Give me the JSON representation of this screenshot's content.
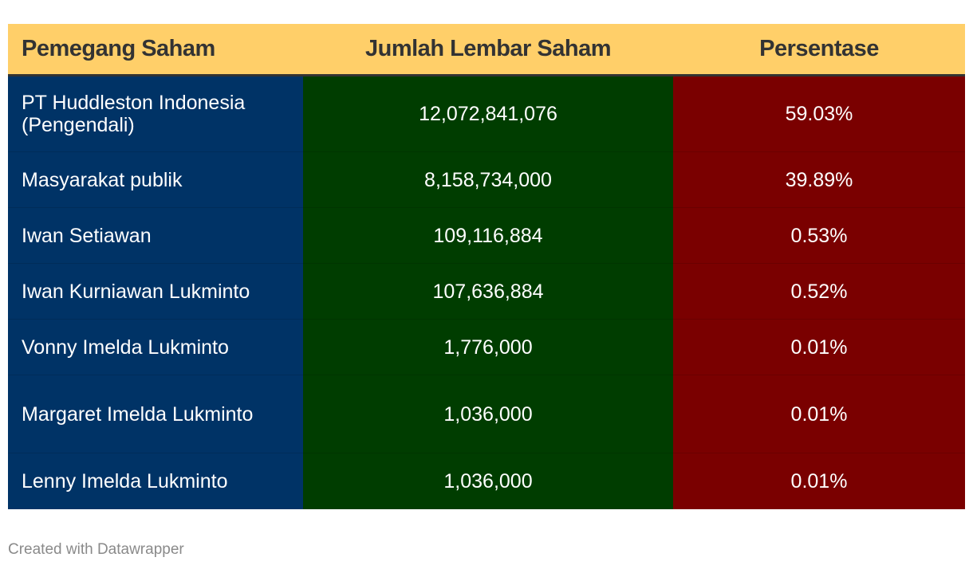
{
  "chart_data": {
    "type": "table",
    "columns": [
      "Pemegang Saham",
      "Jumlah Lembar Saham",
      "Persentase"
    ],
    "rows": [
      {
        "name": "PT Huddleston Indonesia (Pengendali)",
        "shares": "12,072,841,076",
        "percent": "59.03%"
      },
      {
        "name": "Masyarakat publik",
        "shares": "8,158,734,000",
        "percent": "39.89%"
      },
      {
        "name": "Iwan Setiawan",
        "shares": "109,116,884",
        "percent": "0.53%"
      },
      {
        "name": "Iwan Kurniawan Lukminto",
        "shares": "107,636,884",
        "percent": "0.52%"
      },
      {
        "name": "Vonny Imelda Lukminto",
        "shares": "1,776,000",
        "percent": "0.01%"
      },
      {
        "name": "Margaret Imelda Lukminto",
        "shares": "1,036,000",
        "percent": "0.01%"
      },
      {
        "name": "Lenny Imelda Lukminto",
        "shares": "1,036,000",
        "percent": "0.01%"
      }
    ]
  },
  "colors": {
    "header_bg": "#ffcf69",
    "header_text": "#333333",
    "col_name_bg": "#003366",
    "col_shares_bg": "#003d00",
    "col_percent_bg": "#7a0000",
    "cell_text": "#ffffff"
  },
  "footer": {
    "credit": "Created with Datawrapper"
  }
}
